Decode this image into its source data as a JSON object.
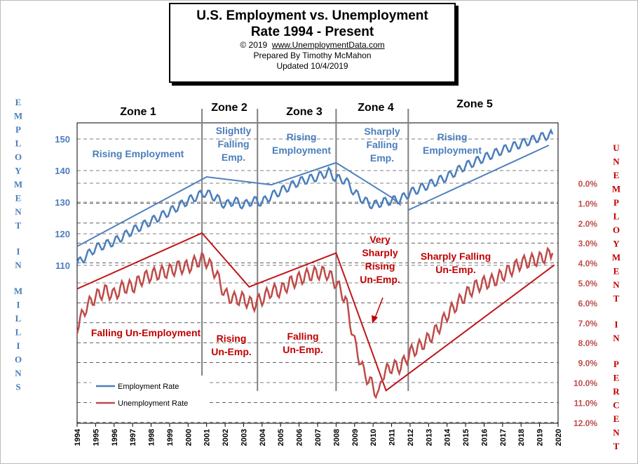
{
  "header": {
    "title_line1": "U.S. Employment vs. Unemployment",
    "title_line2": "Rate 1994 - Present",
    "copyright": "© 2019",
    "site": "www.UnemploymentData.com",
    "prepared": "Prepared  By Timothy McMahon",
    "updated": "Updated  10/4/2019"
  },
  "left_axis_title": "EMPLOYMENT IN MILLIONS",
  "right_axis_title": "UNEMPLOYMENT IN PERCENT",
  "colors": {
    "employment": "#4a7ebb",
    "unemployment": "#be4b48",
    "trend_emp": "#4f81bd",
    "trend_unemp": "#c0161b",
    "zone_line": "#808080",
    "grid": "#000000"
  },
  "legend": [
    {
      "label": "Employment Rate",
      "color": "#4a7ebb"
    },
    {
      "label": "Unemployment Rate",
      "color": "#be4b48"
    }
  ],
  "zones": [
    {
      "name": "Zone 1",
      "emp_text": [
        "Rising Employment"
      ],
      "unemp_text": [
        "Falling Un-Employment"
      ]
    },
    {
      "name": "Zone 2",
      "emp_text": [
        "Slightly",
        "Falling",
        "Emp."
      ],
      "unemp_text": [
        "Rising",
        "Un-Emp."
      ]
    },
    {
      "name": "Zone 3",
      "emp_text": [
        "Rising",
        "Employment"
      ],
      "unemp_text": [
        "Falling",
        "Un-Emp."
      ]
    },
    {
      "name": "Zone 4",
      "emp_text": [
        "Sharply",
        "Falling",
        "Emp."
      ],
      "unemp_text": [
        "Very",
        "Sharply",
        "Rising",
        "Un-Emp."
      ]
    },
    {
      "name": "Zone 5",
      "emp_text": [
        "Rising",
        "Employment"
      ],
      "unemp_text": [
        "Sharply Falling",
        "Un-Emp."
      ]
    }
  ],
  "chart_data": {
    "type": "line",
    "x_range": [
      1994,
      2020
    ],
    "x_ticks": [
      "1994",
      "1995",
      "1996",
      "1997",
      "1998",
      "1999",
      "2000",
      "2001",
      "2002",
      "2003",
      "2004",
      "2005",
      "2006",
      "2007",
      "2008",
      "2009",
      "2010",
      "2011",
      "2012",
      "2013",
      "2014",
      "2015",
      "2016",
      "2017",
      "2018",
      "2019",
      "2020"
    ],
    "left_axis": {
      "label": "Employment (millions)",
      "ticks": [
        "110",
        "120",
        "130",
        "140",
        "150"
      ]
    },
    "right_axis": {
      "label": "Unemployment (percent)",
      "ticks": [
        "0.0%",
        "1.0%",
        "2.0%",
        "3.0%",
        "4.0%",
        "5.0%",
        "6.0%",
        "7.0%",
        "8.0%",
        "9.0%",
        "10.0%",
        "11.0%",
        "12.0%"
      ],
      "inverted": true
    },
    "grid": true,
    "zone_boundaries": [
      2000.75,
      2003.75,
      2008.0,
      2011.9
    ],
    "series": [
      {
        "name": "Employment Rate",
        "axis": "left",
        "points": [
          [
            1994.0,
            110.5
          ],
          [
            1995.0,
            115.5
          ],
          [
            1996.0,
            117.5
          ],
          [
            1997.0,
            121.0
          ],
          [
            1998.0,
            124.0
          ],
          [
            1999.0,
            127.0
          ],
          [
            2000.0,
            130.5
          ],
          [
            2000.9,
            133.0
          ],
          [
            2001.5,
            131.5
          ],
          [
            2002.0,
            129.0
          ],
          [
            2002.5,
            130.5
          ],
          [
            2003.0,
            129.0
          ],
          [
            2003.5,
            130.5
          ],
          [
            2004.0,
            130.0
          ],
          [
            2004.5,
            132.0
          ],
          [
            2005.0,
            133.5
          ],
          [
            2006.0,
            136.5
          ],
          [
            2007.0,
            138.0
          ],
          [
            2007.6,
            139.5
          ],
          [
            2008.0,
            137.5
          ],
          [
            2008.5,
            137.0
          ],
          [
            2009.0,
            133.0
          ],
          [
            2009.5,
            130.5
          ],
          [
            2010.0,
            129.0
          ],
          [
            2010.5,
            130.0
          ],
          [
            2011.0,
            130.5
          ],
          [
            2011.5,
            131.0
          ],
          [
            2012.0,
            133.0
          ],
          [
            2013.0,
            135.5
          ],
          [
            2014.0,
            138.0
          ],
          [
            2015.0,
            141.5
          ],
          [
            2016.0,
            144.0
          ],
          [
            2017.0,
            146.5
          ],
          [
            2018.0,
            148.5
          ],
          [
            2019.0,
            150.5
          ],
          [
            2019.7,
            151.5
          ]
        ]
      },
      {
        "name": "Unemployment Rate",
        "axis": "right",
        "points": [
          [
            1994.0,
            7.2
          ],
          [
            1994.5,
            6.2
          ],
          [
            1995.0,
            5.7
          ],
          [
            1995.5,
            5.4
          ],
          [
            1996.0,
            5.6
          ],
          [
            1996.5,
            5.2
          ],
          [
            1997.0,
            5.2
          ],
          [
            1997.5,
            4.8
          ],
          [
            1998.0,
            4.6
          ],
          [
            1998.5,
            4.5
          ],
          [
            1999.0,
            4.4
          ],
          [
            1999.5,
            4.2
          ],
          [
            2000.0,
            4.2
          ],
          [
            2000.5,
            3.9
          ],
          [
            2000.9,
            3.8
          ],
          [
            2001.5,
            4.5
          ],
          [
            2002.0,
            5.6
          ],
          [
            2002.5,
            5.8
          ],
          [
            2003.0,
            5.8
          ],
          [
            2003.5,
            6.1
          ],
          [
            2004.0,
            5.8
          ],
          [
            2004.5,
            5.4
          ],
          [
            2005.0,
            5.4
          ],
          [
            2005.5,
            5.0
          ],
          [
            2006.0,
            4.8
          ],
          [
            2006.5,
            4.6
          ],
          [
            2007.0,
            4.5
          ],
          [
            2007.5,
            4.5
          ],
          [
            2008.0,
            5.0
          ],
          [
            2008.5,
            5.8
          ],
          [
            2009.0,
            8.0
          ],
          [
            2009.5,
            9.5
          ],
          [
            2010.0,
            10.2
          ],
          [
            2010.3,
            10.7
          ],
          [
            2010.5,
            9.6
          ],
          [
            2011.0,
            9.2
          ],
          [
            2011.5,
            9.2
          ],
          [
            2012.0,
            8.5
          ],
          [
            2012.5,
            8.2
          ],
          [
            2013.0,
            7.8
          ],
          [
            2013.5,
            7.3
          ],
          [
            2014.0,
            6.6
          ],
          [
            2014.5,
            6.1
          ],
          [
            2015.0,
            5.6
          ],
          [
            2015.5,
            5.2
          ],
          [
            2016.0,
            5.0
          ],
          [
            2016.5,
            4.9
          ],
          [
            2017.0,
            4.6
          ],
          [
            2017.5,
            4.3
          ],
          [
            2018.0,
            4.0
          ],
          [
            2018.5,
            3.9
          ],
          [
            2019.0,
            3.8
          ],
          [
            2019.7,
            3.5
          ]
        ]
      }
    ],
    "trend_lines": [
      {
        "axis": "left",
        "points": [
          [
            1994.0,
            116.0
          ],
          [
            2001.0,
            138.0
          ],
          [
            2004.5,
            135.5
          ],
          [
            2008.0,
            142.5
          ],
          [
            2011.0,
            131.5
          ],
          [
            2011.5,
            129.0
          ]
        ]
      },
      {
        "axis": "left",
        "points": [
          [
            2011.9,
            127.5
          ],
          [
            2019.5,
            148.0
          ]
        ]
      },
      {
        "axis": "right",
        "points": [
          [
            1994.0,
            5.3
          ],
          [
            2000.75,
            2.5
          ],
          [
            2003.3,
            5.2
          ],
          [
            2008.0,
            3.5
          ],
          [
            2010.7,
            10.4
          ],
          [
            2019.8,
            4.1
          ]
        ]
      }
    ]
  }
}
